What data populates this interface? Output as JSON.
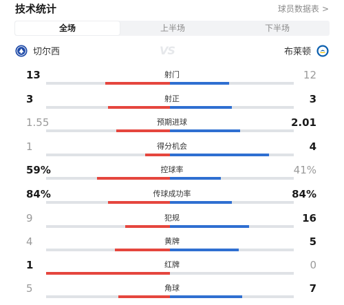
{
  "header": {
    "title": "技术统计",
    "link_label": "球员数据表",
    "link_chevron": ">"
  },
  "tabs": [
    {
      "label": "全场",
      "active": true
    },
    {
      "label": "上半场",
      "active": false
    },
    {
      "label": "下半场",
      "active": false
    }
  ],
  "teams": {
    "home": {
      "name": "切尔西",
      "color": "#1e4aa8"
    },
    "away": {
      "name": "布莱顿",
      "color": "#0b5fae"
    },
    "vs_label": "VS"
  },
  "colors": {
    "home_bar": "#e5463e",
    "away_bar": "#2f6fd1",
    "bar_bg": "#dfe2e6"
  },
  "stats": [
    {
      "label": "射门",
      "home": "13",
      "away": "12",
      "home_share": 0.52,
      "away_share": 0.48,
      "leader": "home"
    },
    {
      "label": "射正",
      "home": "3",
      "away": "3",
      "home_share": 0.5,
      "away_share": 0.5,
      "leader": "both"
    },
    {
      "label": "预期进球",
      "home": "1.55",
      "away": "2.01",
      "home_share": 0.435,
      "away_share": 0.565,
      "leader": "away"
    },
    {
      "label": "得分机会",
      "home": "1",
      "away": "4",
      "home_share": 0.2,
      "away_share": 0.8,
      "leader": "away"
    },
    {
      "label": "控球率",
      "home": "59%",
      "away": "41%",
      "home_share": 0.59,
      "away_share": 0.41,
      "leader": "home"
    },
    {
      "label": "传球成功率",
      "home": "84%",
      "away": "84%",
      "home_share": 0.5,
      "away_share": 0.5,
      "leader": "both"
    },
    {
      "label": "犯规",
      "home": "9",
      "away": "16",
      "home_share": 0.36,
      "away_share": 0.64,
      "leader": "away"
    },
    {
      "label": "黄牌",
      "home": "4",
      "away": "5",
      "home_share": 0.444,
      "away_share": 0.556,
      "leader": "away"
    },
    {
      "label": "红牌",
      "home": "1",
      "away": "0",
      "home_share": 1.0,
      "away_share": 0.0,
      "leader": "home"
    },
    {
      "label": "角球",
      "home": "5",
      "away": "7",
      "home_share": 0.417,
      "away_share": 0.583,
      "leader": "away"
    }
  ]
}
